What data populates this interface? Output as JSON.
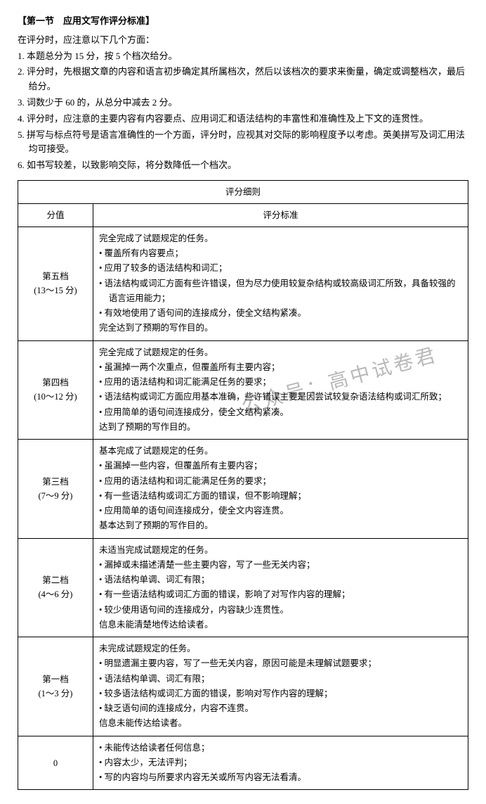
{
  "section_title": "【第一节　应用文写作评分标准】",
  "intro": "在评分时，应注意以下几个方面：",
  "rules": [
    "1. 本题总分为 15 分，按 5 个档次给分。",
    "2. 评分时，先根据文章的内容和语言初步确定其所属档次，然后以该档次的要求来衡量，确定或调整档次，最后给分。",
    "3. 词数少于 60 的，从总分中减去 2 分。",
    "4. 评分时，应注意的主要内容有内容要点、应用词汇和语法结构的丰富性和准确性及上下文的连贯性。",
    "5. 拼写与标点符号是语言准确性的一个方面，评分时，应视其对交际的影响程度予以考虑。英美拼写及词汇用法均可接受。",
    "6. 如书写较差，以致影响交际，将分数降低一个档次。"
  ],
  "rule5_sub": "均可接受。",
  "table": {
    "header_main": "评分细则",
    "header_score": "分值",
    "header_criteria": "评分标准",
    "rows": [
      {
        "label": "第五档",
        "range": "(13～15 分)",
        "lines": [
          {
            "t": "plain",
            "text": "完全完成了试题规定的任务。"
          },
          {
            "t": "bullet",
            "text": "• 覆盖所有内容要点；"
          },
          {
            "t": "bullet",
            "text": "• 应用了较多的语法结构和词汇；"
          },
          {
            "t": "bullet",
            "text": "• 语法结构或词汇方面有些许错误，但为尽力使用较复杂结构或较高级词汇所致，具备较强的语言运用能力；"
          },
          {
            "t": "bullet",
            "text": "• 有效地使用了语句间的连接成分，使全文结构紧凑。"
          },
          {
            "t": "plain",
            "text": "完全达到了预期的写作目的。"
          }
        ]
      },
      {
        "label": "第四档",
        "range": "(10～12 分)",
        "lines": [
          {
            "t": "plain",
            "text": "完全完成了试题规定的任务。"
          },
          {
            "t": "bullet",
            "text": "• 虽漏掉一两个次重点，但覆盖所有主要内容；"
          },
          {
            "t": "bullet",
            "text": "• 应用的语法结构和词汇能满足任务的要求；"
          },
          {
            "t": "bullet",
            "text": "• 语法结构或词汇方面应用基本准确，些许错误主要是因尝试较复杂语法结构或词汇所致；"
          },
          {
            "t": "bullet",
            "text": "• 应用简单的语句间连接成分，使全文结构紧凑。"
          },
          {
            "t": "plain",
            "text": "达到了预期的写作目的。"
          }
        ]
      },
      {
        "label": "第三档",
        "range": "(7～9 分)",
        "lines": [
          {
            "t": "plain",
            "text": "基本完成了试题规定的任务。"
          },
          {
            "t": "bullet",
            "text": "• 虽漏掉一些内容，但覆盖所有主要内容；"
          },
          {
            "t": "bullet",
            "text": "• 应用的语法结构和词汇能满足任务的要求；"
          },
          {
            "t": "bullet",
            "text": "• 有一些语法结构或词汇方面的错误，但不影响理解；"
          },
          {
            "t": "bullet",
            "text": "• 应用简单的语句间连接成分，使全文内容连贯。"
          },
          {
            "t": "plain",
            "text": "基本达到了预期的写作目的。"
          }
        ]
      },
      {
        "label": "第二档",
        "range": "(4～6 分)",
        "lines": [
          {
            "t": "plain",
            "text": "未适当完成试题规定的任务。"
          },
          {
            "t": "bullet",
            "text": "• 漏掉或未描述清楚一些主要内容，写了一些无关内容；"
          },
          {
            "t": "bullet",
            "text": "• 语法结构单调、词汇有限；"
          },
          {
            "t": "bullet",
            "text": "• 有一些语法结构或词汇方面的错误，影响了对写作内容的理解；"
          },
          {
            "t": "bullet",
            "text": "• 较少使用语句间的连接成分，内容缺少连贯性。"
          },
          {
            "t": "plain",
            "text": "信息未能清楚地传达给读者。"
          }
        ]
      },
      {
        "label": "第一档",
        "range": "(1～3 分)",
        "lines": [
          {
            "t": "plain",
            "text": "未完成试题规定的任务。"
          },
          {
            "t": "bullet",
            "text": "• 明显遗漏主要内容，写了一些无关内容，原因可能是未理解试题要求；"
          },
          {
            "t": "bullet",
            "text": "• 语法结构单调、词汇有限；"
          },
          {
            "t": "bullet",
            "text": "• 较多语法结构或词汇方面的错误，影响对写作内容的理解；"
          },
          {
            "t": "bullet",
            "text": "• 缺乏语句间的连接成分，内容不连贯。"
          },
          {
            "t": "plain",
            "text": "信息未能传达给读者。"
          }
        ]
      },
      {
        "label": "0",
        "range": "",
        "lines": [
          {
            "t": "bullet",
            "text": "• 未能传达给读者任何信息；"
          },
          {
            "t": "bullet",
            "text": "• 内容太少，无法评判；"
          },
          {
            "t": "bullet",
            "text": "• 写的内容均与所要求内容无关或所写内容无法看清。"
          }
        ]
      }
    ]
  },
  "watermark": "公众号：高中试卷君"
}
